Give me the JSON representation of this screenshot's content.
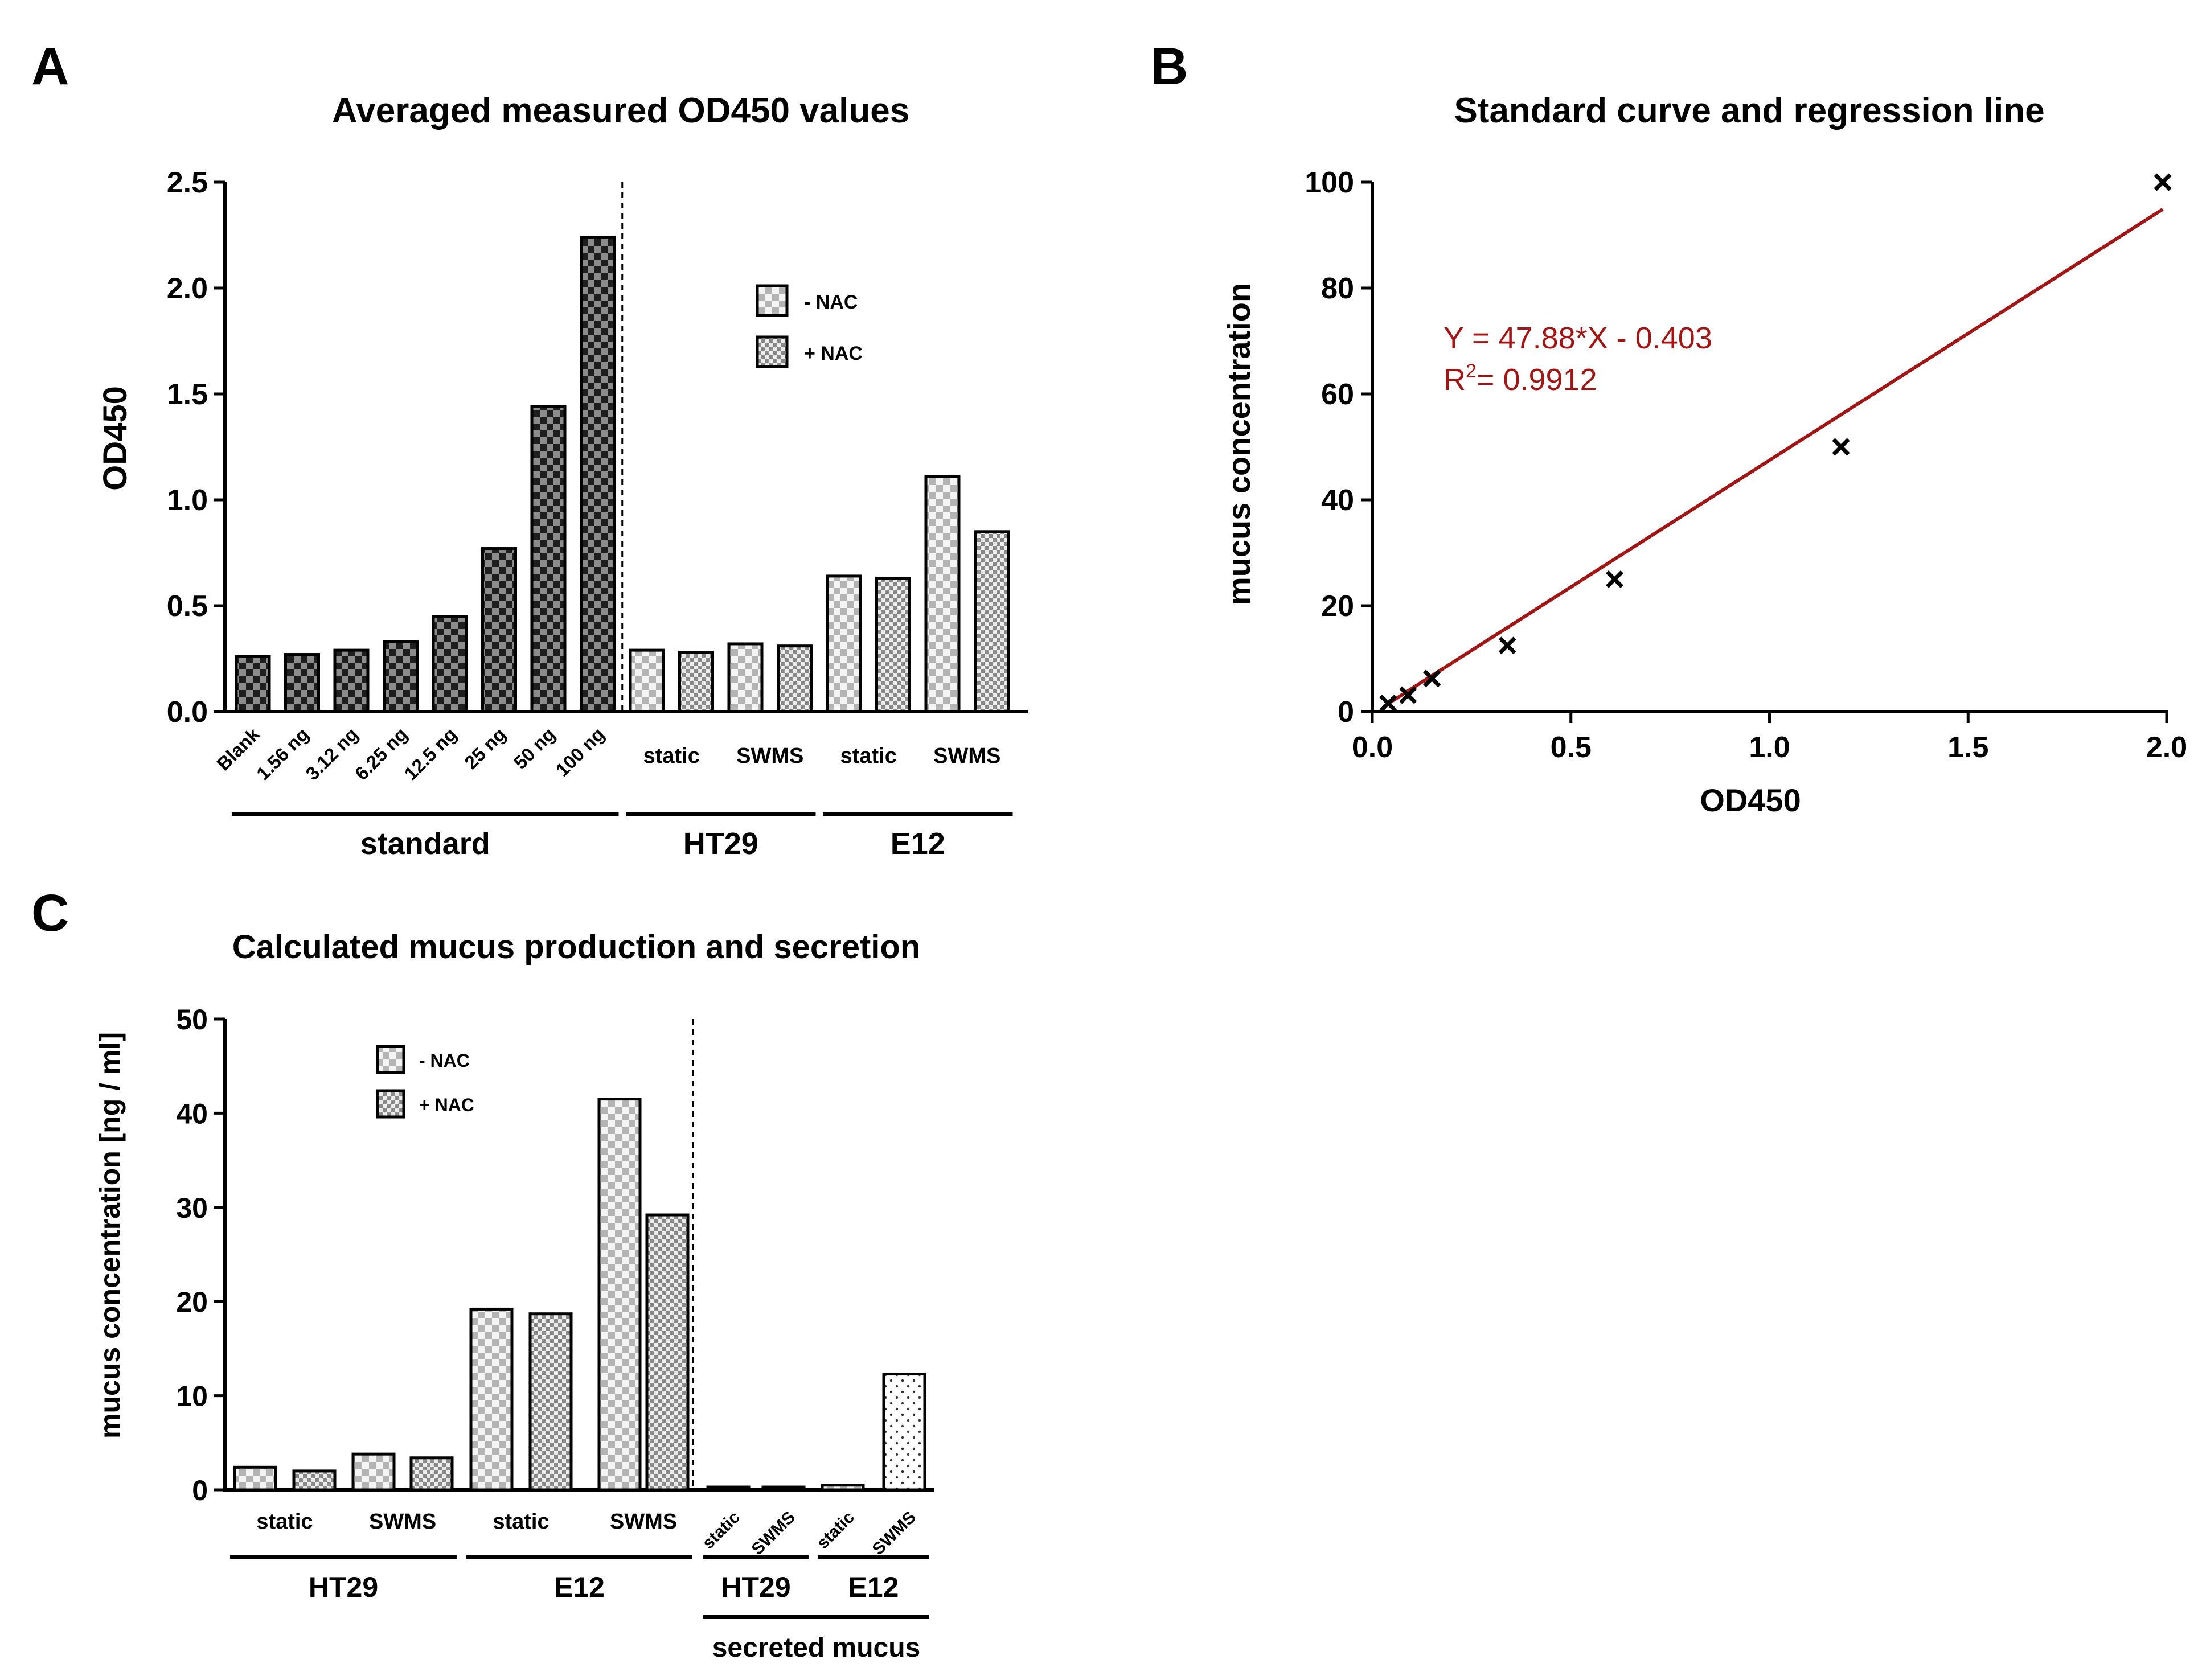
{
  "colors": {
    "regression_line": "#a31515",
    "equation_text": "#a31515",
    "dark_checker": "#3a3a3a",
    "light_checker": "#c2c2c2",
    "axis": "#000000"
  },
  "chart_data": [
    {
      "panel_label": "A",
      "type": "bar",
      "title": "Averaged measured OD450 values",
      "xlabel": "",
      "ylabel": "OD450",
      "ylim": [
        0,
        2.5
      ],
      "yticks": [
        0.0,
        0.5,
        1.0,
        1.5,
        2.0,
        2.5
      ],
      "ytick_labels": [
        "0.0",
        "0.5",
        "1.0",
        "1.5",
        "2.0",
        "2.5"
      ],
      "legend": {
        "placement": "top-right",
        "entries": [
          "- NAC",
          "+ NAC"
        ]
      },
      "bars": [
        {
          "label": "Blank",
          "value": 0.26,
          "pattern": "dark"
        },
        {
          "label": "1.56 ng",
          "value": 0.27,
          "pattern": "dark"
        },
        {
          "label": "3.12 ng",
          "value": 0.29,
          "pattern": "dark"
        },
        {
          "label": "6.25 ng",
          "value": 0.33,
          "pattern": "dark"
        },
        {
          "label": "12.5 ng",
          "value": 0.45,
          "pattern": "dark"
        },
        {
          "label": "25 ng",
          "value": 0.77,
          "pattern": "dark"
        },
        {
          "label": "50 ng",
          "value": 1.44,
          "pattern": "dark"
        },
        {
          "label": "100 ng",
          "value": 2.24,
          "pattern": "dark"
        },
        {
          "label": "",
          "value": 0.29,
          "pattern": "minus"
        },
        {
          "label": "",
          "value": 0.28,
          "pattern": "plus"
        },
        {
          "label": "",
          "value": 0.32,
          "pattern": "minus"
        },
        {
          "label": "",
          "value": 0.31,
          "pattern": "plus"
        },
        {
          "label": "",
          "value": 0.64,
          "pattern": "minus"
        },
        {
          "label": "",
          "value": 0.63,
          "pattern": "plus"
        },
        {
          "label": "",
          "value": 1.11,
          "pattern": "minus"
        },
        {
          "label": "",
          "value": 0.85,
          "pattern": "plus"
        }
      ],
      "pair_labels": [
        {
          "text": "static",
          "bars": [
            8,
            9
          ]
        },
        {
          "text": "SWMS",
          "bars": [
            10,
            11
          ]
        },
        {
          "text": "static",
          "bars": [
            12,
            13
          ]
        },
        {
          "text": "SWMS",
          "bars": [
            14,
            15
          ]
        }
      ],
      "groups": [
        {
          "text": "standard",
          "bars": [
            0,
            7
          ]
        },
        {
          "text": "HT29",
          "bars": [
            8,
            11
          ]
        },
        {
          "text": "E12",
          "bars": [
            12,
            15
          ]
        }
      ],
      "divider_after_bar": 7
    },
    {
      "panel_label": "B",
      "type": "scatter",
      "title": "Standard curve and regression line",
      "xlabel": "OD450",
      "ylabel": "mucus concentration",
      "xlim": [
        0,
        2.0
      ],
      "ylim": [
        0,
        100
      ],
      "xticks": [
        0.0,
        0.5,
        1.0,
        1.5,
        2.0
      ],
      "xtick_labels": [
        "0.0",
        "0.5",
        "1.0",
        "1.5",
        "2.0"
      ],
      "yticks": [
        0,
        20,
        40,
        60,
        80,
        100
      ],
      "ytick_labels": [
        "0",
        "20",
        "40",
        "60",
        "80",
        "100"
      ],
      "points": [
        {
          "x": 0.04,
          "y": 1.56
        },
        {
          "x": 0.09,
          "y": 3.12
        },
        {
          "x": 0.15,
          "y": 6.25
        },
        {
          "x": 0.34,
          "y": 12.5
        },
        {
          "x": 0.61,
          "y": 25
        },
        {
          "x": 1.18,
          "y": 50
        },
        {
          "x": 1.99,
          "y": 100
        }
      ],
      "regression": {
        "slope": 47.88,
        "intercept": -0.403,
        "x_range": [
          0.03,
          1.99
        ]
      },
      "equation_text": "Y = 47.88*X - 0.403",
      "r2_prefix": "R",
      "r2_sup": "2",
      "r2_rest": "= 0.9912"
    },
    {
      "panel_label": "C",
      "type": "bar",
      "title": "Calculated mucus production and secretion",
      "xlabel": "",
      "ylabel": "mucus concentration [ng / ml]",
      "ylim": [
        0,
        50
      ],
      "yticks": [
        0,
        10,
        20,
        30,
        40,
        50
      ],
      "ytick_labels": [
        "0",
        "10",
        "20",
        "30",
        "40",
        "50"
      ],
      "legend": {
        "placement": "top-left",
        "entries": [
          "- NAC",
          "+ NAC"
        ]
      },
      "bars": [
        {
          "value": 2.4,
          "pattern": "minus"
        },
        {
          "value": 2.0,
          "pattern": "plus"
        },
        {
          "value": 3.8,
          "pattern": "minus"
        },
        {
          "value": 3.4,
          "pattern": "plus"
        },
        {
          "value": 19.2,
          "pattern": "minus"
        },
        {
          "value": 18.7,
          "pattern": "plus"
        },
        {
          "value": 41.5,
          "pattern": "minus"
        },
        {
          "value": 29.2,
          "pattern": "plus"
        },
        {
          "value": 0.3,
          "pattern": "minus"
        },
        {
          "value": 0.3,
          "pattern": "minus"
        },
        {
          "value": 0.5,
          "pattern": "minus"
        },
        {
          "value": 12.3,
          "pattern": "dots"
        }
      ],
      "pair_labels": [
        {
          "text": "static",
          "bars": [
            0,
            1
          ],
          "rotated": false
        },
        {
          "text": "SWMS",
          "bars": [
            2,
            3
          ],
          "rotated": false
        },
        {
          "text": "static",
          "bars": [
            4,
            5
          ],
          "rotated": false
        },
        {
          "text": "SWMS",
          "bars": [
            6,
            7
          ],
          "rotated": false
        },
        {
          "text": "static",
          "bars": [
            8,
            8
          ],
          "rotated": true
        },
        {
          "text": "SWMS",
          "bars": [
            9,
            9
          ],
          "rotated": true
        },
        {
          "text": "static",
          "bars": [
            10,
            10
          ],
          "rotated": true
        },
        {
          "text": "SWMS",
          "bars": [
            11,
            11
          ],
          "rotated": true
        }
      ],
      "groups": [
        {
          "text": "HT29",
          "bars": [
            0,
            3
          ]
        },
        {
          "text": "E12",
          "bars": [
            4,
            7
          ]
        },
        {
          "text": "HT29",
          "bars": [
            8,
            9
          ]
        },
        {
          "text": "E12",
          "bars": [
            10,
            11
          ]
        }
      ],
      "supergroup": {
        "text": "secreted mucus",
        "bars": [
          8,
          11
        ]
      },
      "divider_after_bar": 7
    }
  ]
}
